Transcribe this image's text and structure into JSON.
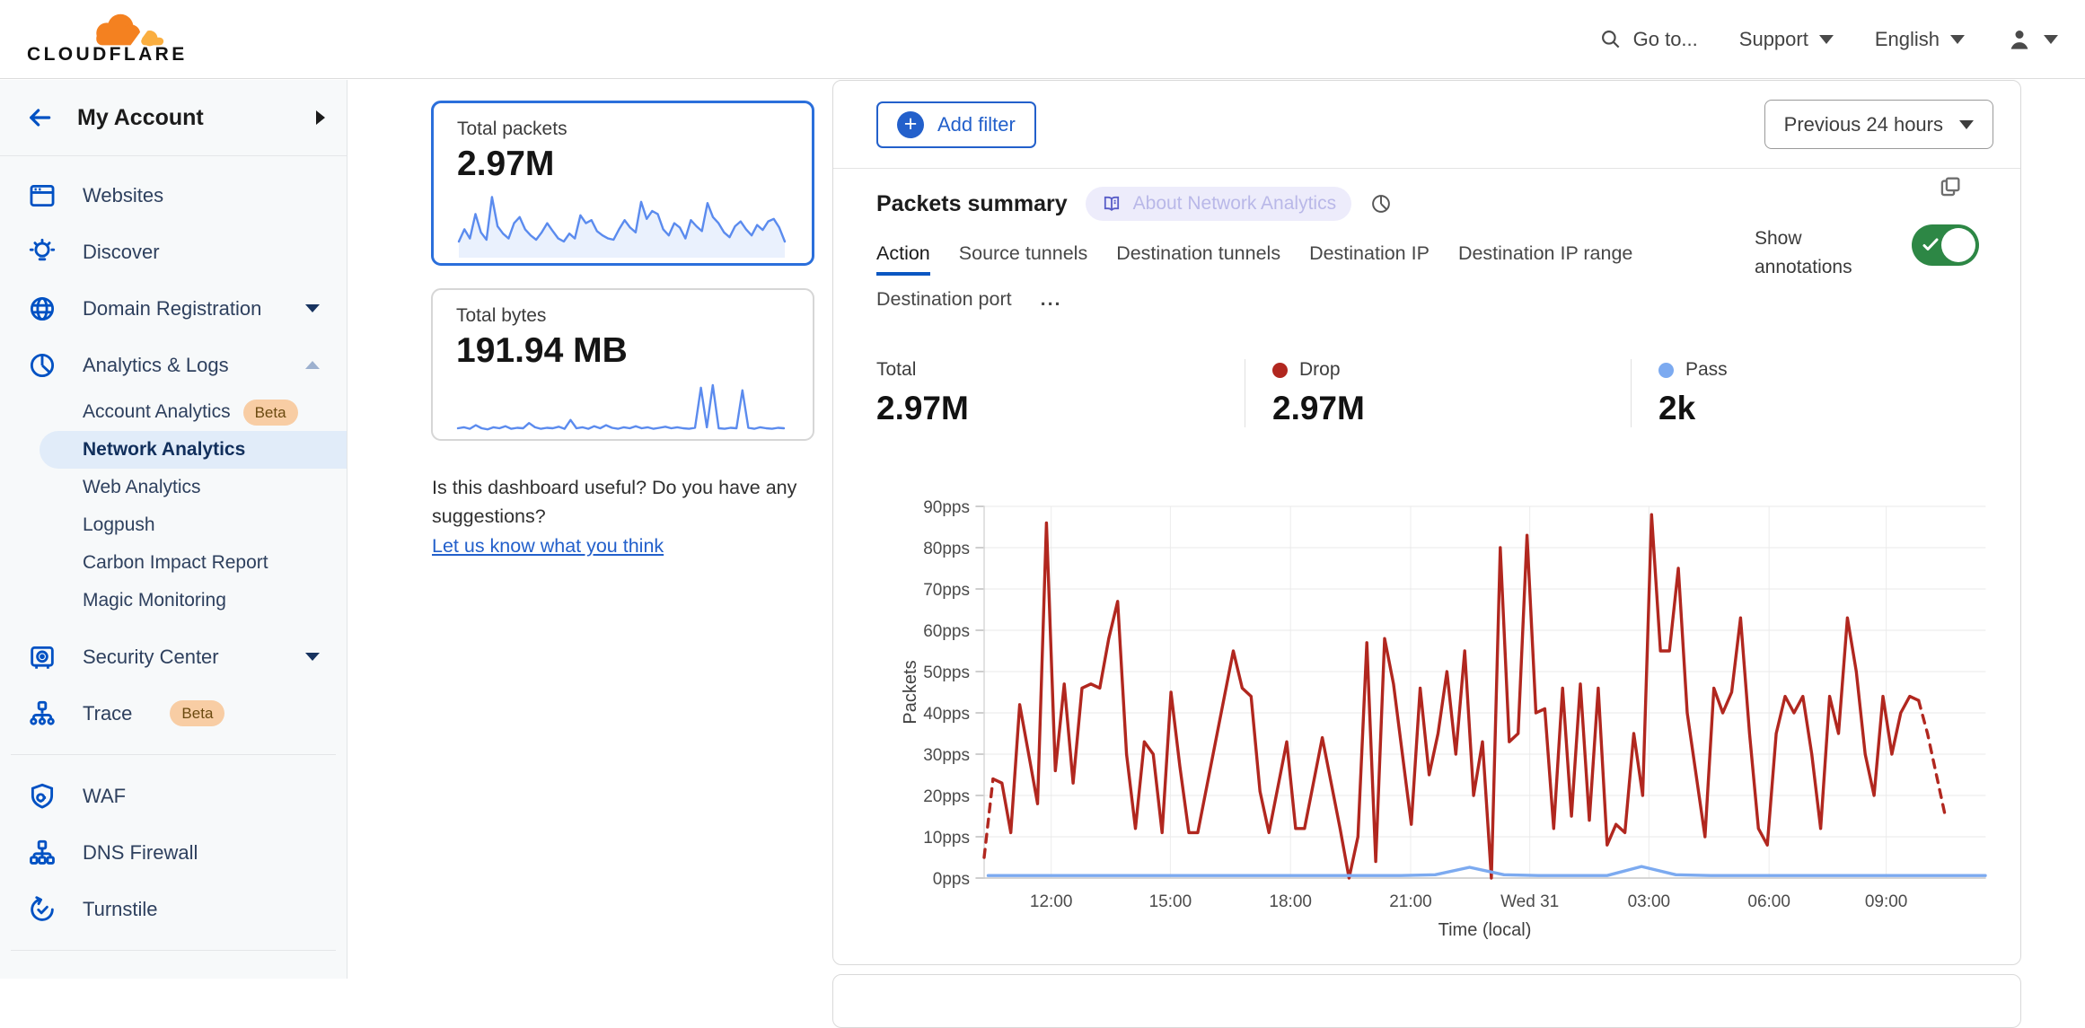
{
  "header": {
    "logo_text": "CLOUDFLARE",
    "goto": "Go to...",
    "support": "Support",
    "language": "English"
  },
  "sidebar": {
    "account_title": "My Account",
    "items": [
      {
        "label": "Websites",
        "icon": "browser-icon"
      },
      {
        "label": "Discover",
        "icon": "lightbulb-icon"
      },
      {
        "label": "Domain Registration",
        "icon": "globe-icon"
      },
      {
        "label": "Analytics & Logs",
        "icon": "pie-chart-icon"
      }
    ],
    "analytics_children": [
      {
        "label": "Account Analytics",
        "badge": "Beta"
      },
      {
        "label": "Network Analytics",
        "selected": true
      },
      {
        "label": "Web Analytics"
      },
      {
        "label": "Logpush"
      },
      {
        "label": "Carbon Impact Report"
      },
      {
        "label": "Magic Monitoring"
      }
    ],
    "items2": [
      {
        "label": "Security Center",
        "icon": "safe-icon"
      },
      {
        "label": "Trace",
        "icon": "trace-icon",
        "badge": "Beta"
      }
    ],
    "items3": [
      {
        "label": "WAF",
        "icon": "shield-gear-icon"
      },
      {
        "label": "DNS Firewall",
        "icon": "hierarchy-icon"
      },
      {
        "label": "Turnstile",
        "icon": "rotate-check-icon"
      }
    ]
  },
  "summary_cards": {
    "packets_label": "Total packets",
    "packets_value": "2.97M",
    "bytes_label": "Total bytes",
    "bytes_value": "191.94 MB"
  },
  "feedback": {
    "question": "Is this dashboard useful? Do you have any suggestions?",
    "link": "Let us know what you think"
  },
  "toolbar": {
    "add_filter": "Add filter",
    "time_range": "Previous 24 hours"
  },
  "panel": {
    "title": "Packets summary",
    "about": "About Network Analytics",
    "tabs": [
      "Action",
      "Source tunnels",
      "Destination tunnels",
      "Destination IP",
      "Destination IP range",
      "Destination port"
    ],
    "more": "...",
    "show_annotations": "Show annotations",
    "annotations_on": true,
    "stats": [
      {
        "label": "Total",
        "value": "2.97M"
      },
      {
        "label": "Drop",
        "value": "2.97M",
        "color": "#b1271f"
      },
      {
        "label": "Pass",
        "value": "2k",
        "color": "#7caaf0"
      }
    ]
  },
  "colors": {
    "accent_blue": "#2360cb",
    "sidebar_icon_blue": "#0051c3",
    "drop_red": "#b1271f",
    "pass_blue": "#7caaf0",
    "toggle_green": "#2d8745",
    "selected_card_border": "#2b6fdb"
  },
  "chart_data": {
    "sparkline_packets": {
      "type": "area",
      "color": "#5b8bee",
      "fill": "rgba(95,143,240,0.13)",
      "ymax": 100,
      "values": [
        25,
        45,
        30,
        70,
        40,
        28,
        98,
        50,
        38,
        30,
        55,
        65,
        45,
        35,
        28,
        40,
        55,
        42,
        30,
        25,
        38,
        30,
        68,
        55,
        60,
        42,
        35,
        30,
        28,
        45,
        60,
        48,
        40,
        90,
        62,
        75,
        70,
        45,
        35,
        55,
        48,
        30,
        60,
        50,
        42,
        88,
        65,
        55,
        40,
        32,
        50,
        58,
        45,
        35,
        52,
        44,
        58,
        62,
        48,
        25
      ]
    },
    "sparkline_bytes": {
      "type": "line",
      "color": "#5b8bee",
      "ymax": 100,
      "values": [
        12,
        14,
        11,
        18,
        12,
        10,
        14,
        12,
        16,
        11,
        13,
        12,
        22,
        14,
        11,
        13,
        12,
        15,
        11,
        28,
        12,
        14,
        11,
        16,
        12,
        18,
        13,
        11,
        14,
        12,
        16,
        12,
        14,
        11,
        13,
        15,
        12,
        14,
        12,
        11,
        13,
        90,
        14,
        95,
        12,
        11,
        13,
        12,
        85,
        13,
        11,
        14,
        12,
        11,
        13,
        12
      ]
    },
    "main": {
      "type": "line",
      "title": "Packets summary",
      "xlabel": "Time (local)",
      "ylabel": "Packets",
      "ylim": [
        0,
        90
      ],
      "grid": true,
      "yticks": [
        "0pps",
        "10pps",
        "20pps",
        "30pps",
        "40pps",
        "50pps",
        "60pps",
        "70pps",
        "80pps",
        "90pps"
      ],
      "xticks": [
        {
          "pos": 0.067,
          "label": "12:00"
        },
        {
          "pos": 0.186,
          "label": "15:00"
        },
        {
          "pos": 0.306,
          "label": "18:00"
        },
        {
          "pos": 0.426,
          "label": "21:00"
        },
        {
          "pos": 0.545,
          "label": "Wed 31"
        },
        {
          "pos": 0.664,
          "label": "03:00"
        },
        {
          "pos": 0.784,
          "label": "06:00"
        },
        {
          "pos": 0.901,
          "label": "09:00"
        }
      ],
      "series": [
        {
          "name": "Drop",
          "color": "#b1271f",
          "span": [
            0,
            0.96
          ],
          "dashed_head_points": 2,
          "dashed_tail_points": 4,
          "values": [
            5,
            24,
            23,
            11,
            42,
            30,
            18,
            86,
            26,
            47,
            23,
            46,
            47,
            46,
            58,
            67,
            30,
            12,
            33,
            30,
            11,
            45,
            27,
            11,
            11,
            22,
            33,
            44,
            55,
            46,
            44,
            21,
            11,
            22,
            33,
            12,
            12,
            23,
            34,
            23,
            12,
            0,
            10,
            57,
            4,
            58,
            47,
            30,
            13,
            46,
            25,
            35,
            50,
            30,
            55,
            20,
            33,
            0,
            80,
            33,
            35,
            83,
            40,
            41,
            12,
            46,
            15,
            47,
            14,
            46,
            8,
            13,
            11,
            35,
            20,
            88,
            55,
            55,
            75,
            40,
            25,
            10,
            46,
            40,
            45,
            63,
            35,
            12,
            8,
            35,
            44,
            40,
            44,
            30,
            12,
            44,
            35,
            63,
            50,
            30,
            20,
            44,
            30,
            40,
            44,
            43,
            35,
            25,
            15
          ]
        },
        {
          "name": "Pass",
          "color": "#7caaf0",
          "span": [
            0.004,
            1.0
          ],
          "values": [
            0.6,
            0.6,
            0.6,
            0.6,
            0.6,
            0.6,
            0.6,
            0.6,
            0.6,
            0.6,
            0.6,
            0.6,
            0.6,
            0.8,
            2.6,
            0.8,
            0.6,
            0.6,
            0.6,
            2.8,
            0.8,
            0.6,
            0.6,
            0.6,
            0.6,
            0.6,
            0.6,
            0.6,
            0.6,
            0.6
          ]
        }
      ]
    }
  }
}
